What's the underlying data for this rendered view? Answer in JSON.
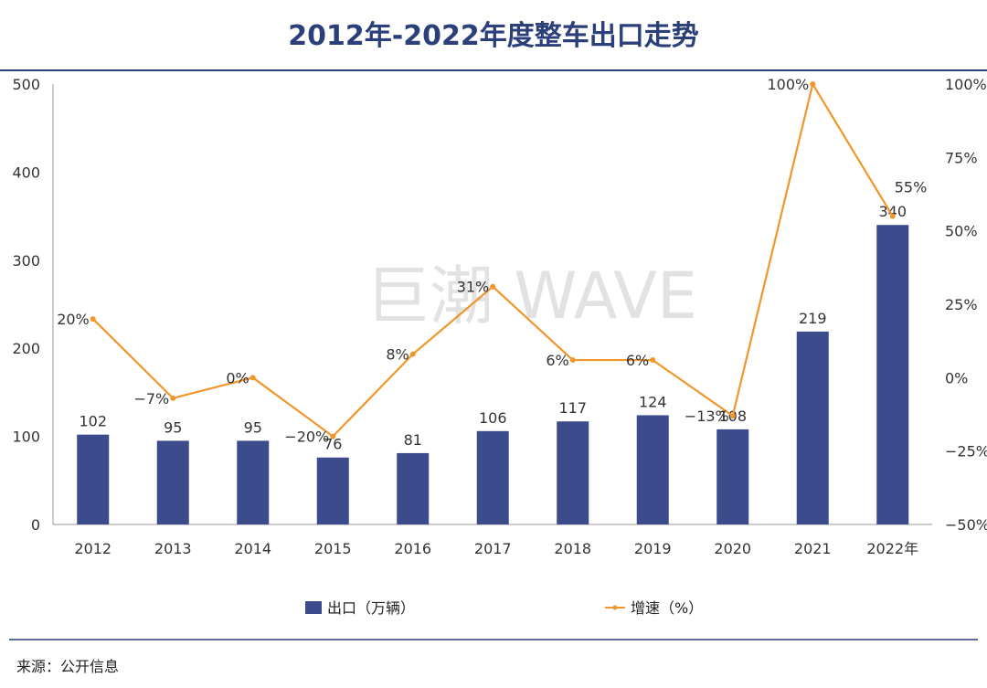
{
  "title": "2012年-2022年度整车出口走势",
  "watermark": "巨潮 WAVE",
  "source": "来源：公开信息",
  "colors": {
    "bar": "#3b4b8c",
    "line": "#f0962b",
    "rule": "#2b3f7a"
  },
  "chart_data": {
    "type": "bar+line",
    "categories": [
      "2012",
      "2013",
      "2014",
      "2015",
      "2016",
      "2017",
      "2018",
      "2019",
      "2020",
      "2021",
      "2022年"
    ],
    "series": [
      {
        "name": "出口（万辆）",
        "type": "bar",
        "axis": "left",
        "values": [
          102,
          95,
          95,
          76,
          81,
          106,
          117,
          124,
          108,
          219,
          340
        ]
      },
      {
        "name": "增速（%）",
        "type": "line",
        "axis": "right",
        "values": [
          20,
          -7,
          0,
          -20,
          8,
          31,
          6,
          6,
          -13,
          100,
          55
        ],
        "labels": [
          "20%",
          "−7%",
          "0%",
          "−20%",
          "8%",
          "31%",
          "6%",
          "6%",
          "−13%",
          "100%",
          "55%"
        ]
      }
    ],
    "y_left": {
      "ylim": [
        0,
        500
      ],
      "ticks": [
        "0",
        "100",
        "200",
        "300",
        "400",
        "500"
      ]
    },
    "y_right": {
      "ylim": [
        -50,
        100
      ],
      "ticks": [
        "−50%",
        "−25%",
        "0%",
        "25%",
        "50%",
        "75%",
        "100%"
      ]
    },
    "legend": {
      "position": "bottom",
      "items": [
        "出口（万辆）",
        "增速（%）"
      ]
    },
    "grid": false
  }
}
